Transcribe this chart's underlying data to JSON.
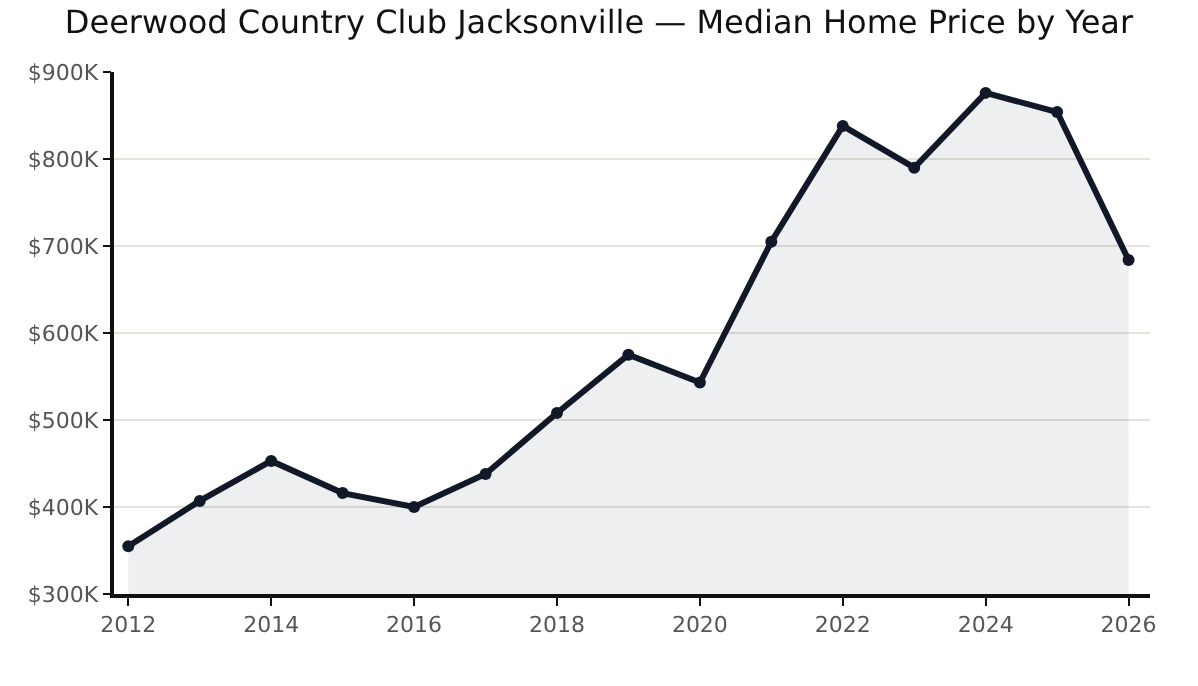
{
  "chart_data": {
    "type": "area",
    "title": "Deerwood Country Club Jacksonville — Median Home Price by Year",
    "x": [
      2012,
      2013,
      2014,
      2015,
      2016,
      2017,
      2018,
      2019,
      2020,
      2021,
      2022,
      2023,
      2024,
      2025,
      2026
    ],
    "series": [
      {
        "color": "#111827",
        "values": [
          355000,
          407000,
          453000,
          416000,
          400000,
          438000,
          508000,
          575000,
          543000,
          705000,
          838000,
          790000,
          876000,
          854000,
          684000
        ]
      }
    ],
    "xlim": [
      2011.8,
      2026.3
    ],
    "xticks": [
      2012,
      2014,
      2016,
      2018,
      2020,
      2022,
      2024,
      2026
    ],
    "ylim": [
      300000,
      900000
    ],
    "yticks": [
      {
        "value": 300000,
        "label": "$300K"
      },
      {
        "value": 400000,
        "label": "$400K"
      },
      {
        "value": 500000,
        "label": "$500K"
      },
      {
        "value": 600000,
        "label": "$600K"
      },
      {
        "value": 700000,
        "label": "$700K"
      },
      {
        "value": 800000,
        "label": "$800K"
      },
      {
        "value": 900000,
        "label": "$900K"
      }
    ],
    "grid": "y",
    "marker": "circle",
    "line_style": "solid",
    "legend": false
  }
}
